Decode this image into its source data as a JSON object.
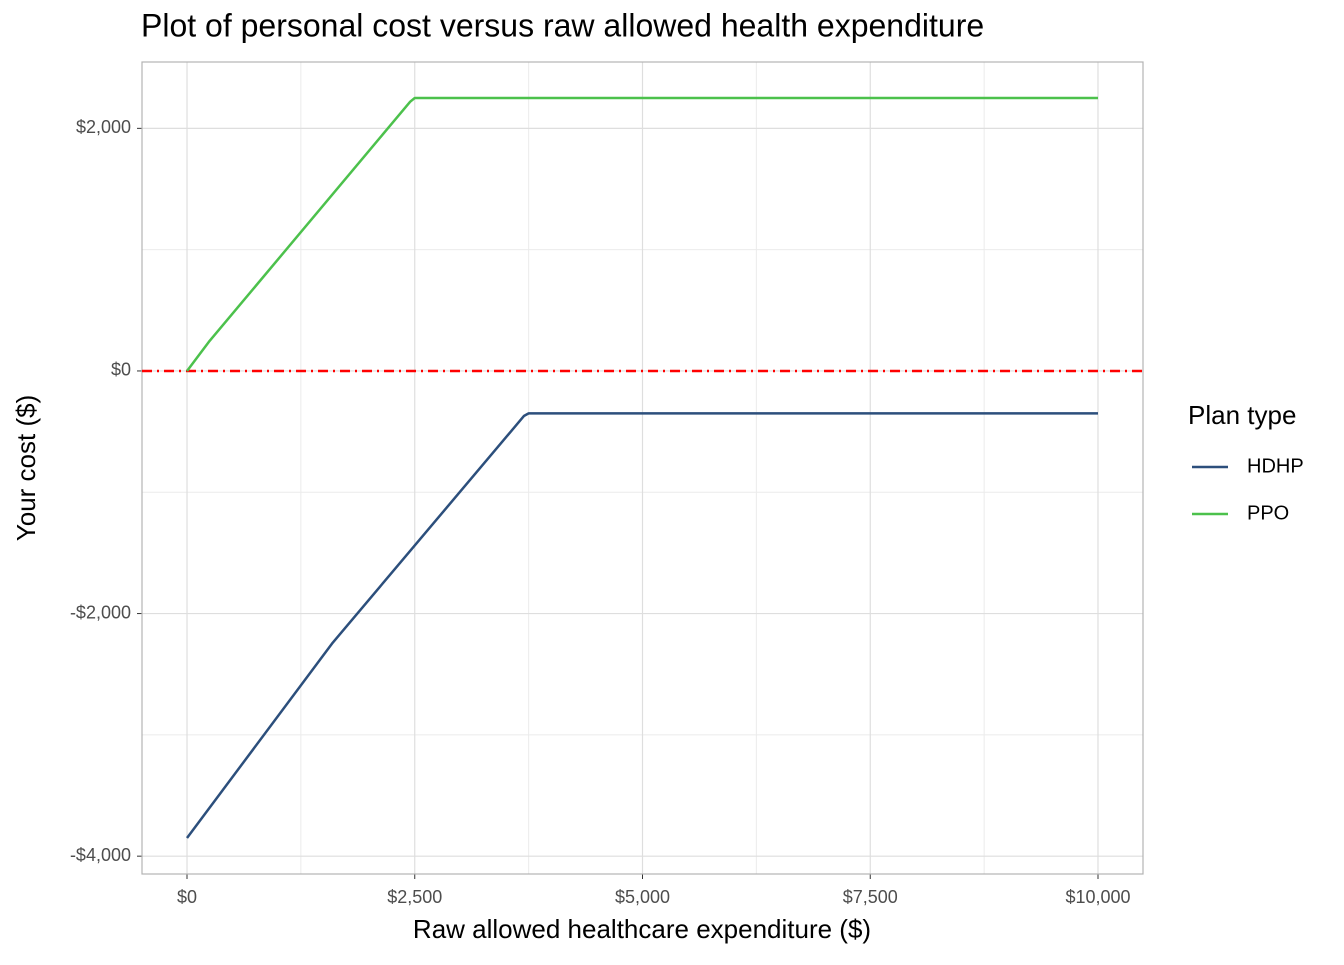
{
  "chart_data": {
    "type": "line",
    "title": "Plot of personal cost versus raw allowed health expenditure",
    "x_label": "Raw allowed healthcare expenditure ($)",
    "y_label": "Your cost ($)",
    "legend_title": "Plan type",
    "legend_position": "right",
    "grid": true,
    "series": [
      {
        "name": "HDHP",
        "color": "#2c4f7c",
        "x": [
          0,
          1600,
          3700,
          3750,
          10000
        ],
        "values": [
          -3850,
          -2240,
          -370,
          -350,
          -350
        ]
      },
      {
        "name": "PPO",
        "color": "#4cc14c",
        "x": [
          0,
          240,
          2450,
          2500,
          10000
        ],
        "values": [
          0,
          240,
          2220,
          2250,
          2250
        ]
      }
    ],
    "hline": {
      "value": 0,
      "color": "#ff0000"
    },
    "xlim": [
      -494,
      10494
    ],
    "ylim": [
      -4147,
      2547
    ],
    "xticks": [
      {
        "value": 0,
        "label": "$0"
      },
      {
        "value": 2500,
        "label": "$2,500"
      },
      {
        "value": 5000,
        "label": "$5,000"
      },
      {
        "value": 7500,
        "label": "$7,500"
      },
      {
        "value": 10000,
        "label": "$10,000"
      }
    ],
    "yticks": [
      {
        "value": -4000,
        "label": "-$4,000"
      },
      {
        "value": -2000,
        "label": "-$2,000"
      },
      {
        "value": 0,
        "label": "$0"
      },
      {
        "value": 2000,
        "label": "$2,000"
      }
    ],
    "xminorticks": [
      1250,
      3750,
      6250,
      8750
    ],
    "yminorticks": [
      -3000,
      -1000,
      1000
    ]
  }
}
